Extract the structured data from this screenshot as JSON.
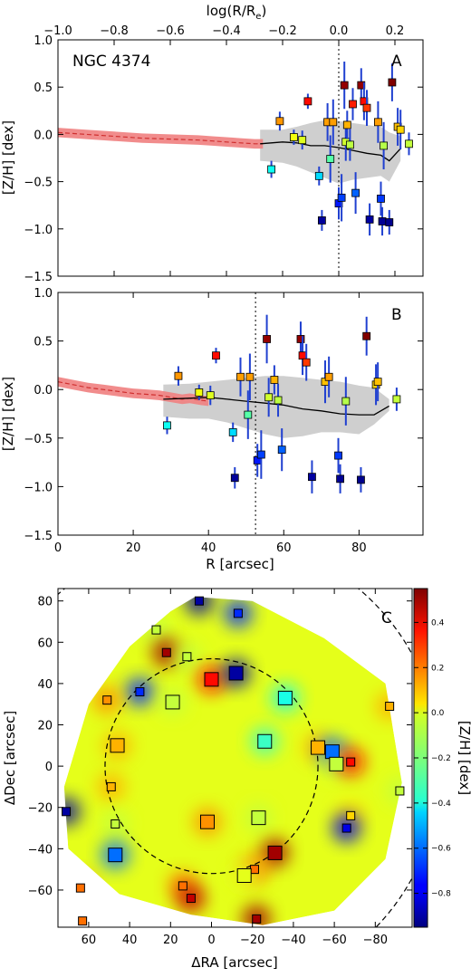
{
  "figure": {
    "galaxy": "NGC 4374",
    "panel_labels": [
      "A",
      "B",
      "C"
    ],
    "top_axis_label": "log(R/R",
    "top_axis_sub": "e",
    "top_axis_tail": ")"
  },
  "chart_data": [
    {
      "panel": "A",
      "type": "scatter",
      "xlabel": "",
      "ylabel": "[Z/H] [dex]",
      "x_scale": "log",
      "xlim": [
        -1.0,
        0.3
      ],
      "ylim": [
        -1.5,
        1.0
      ],
      "x_ticks": [
        -1.0,
        -0.8,
        -0.6,
        -0.4,
        -0.2,
        0.0,
        0.2
      ],
      "x_tick_labels": [
        "−1.0",
        "−0.8",
        "−0.6",
        "−0.4",
        "−0.2",
        "0.0",
        "0.2"
      ],
      "y_ticks": [
        -1.5,
        -1.0,
        -0.5,
        0.0,
        0.5,
        1.0
      ],
      "y_tick_labels": [
        "−1.5",
        "−1.0",
        "−0.5",
        "0.0",
        "0.5",
        "1.0"
      ],
      "reference_line_x": 0.0,
      "stellar_profile": {
        "x": [
          -1.0,
          -0.9,
          -0.8,
          -0.7,
          -0.6,
          -0.5,
          -0.45,
          -0.4,
          -0.35,
          -0.3,
          -0.27
        ],
        "y": [
          0.02,
          0.0,
          -0.02,
          -0.04,
          -0.05,
          -0.06,
          -0.07,
          -0.08,
          -0.09,
          -0.1,
          -0.1
        ],
        "err": 0.05,
        "color": "#f08080"
      },
      "smoothed_profile": {
        "x": [
          -0.28,
          -0.2,
          -0.15,
          -0.1,
          -0.05,
          0.0,
          0.05,
          0.1,
          0.15,
          0.18,
          0.22
        ],
        "y": [
          -0.1,
          -0.08,
          -0.09,
          -0.12,
          -0.12,
          -0.14,
          -0.17,
          -0.2,
          -0.22,
          -0.28,
          -0.15
        ],
        "band_low": [
          -0.28,
          -0.3,
          -0.34,
          -0.4,
          -0.46,
          -0.52,
          -0.48,
          -0.46,
          -0.44,
          -0.5,
          -0.28
        ],
        "band_high": [
          0.05,
          0.05,
          0.08,
          0.12,
          0.15,
          0.14,
          0.12,
          0.1,
          0.08,
          0.02,
          -0.02
        ]
      },
      "points": [
        {
          "x": -0.24,
          "y": -0.37,
          "err": 0.09
        },
        {
          "x": -0.21,
          "y": 0.14,
          "err": 0.1
        },
        {
          "x": -0.16,
          "y": -0.03,
          "err": 0.08
        },
        {
          "x": -0.13,
          "y": -0.06,
          "err": 0.1
        },
        {
          "x": -0.11,
          "y": 0.35,
          "err": 0.08
        },
        {
          "x": -0.07,
          "y": -0.44,
          "err": 0.1
        },
        {
          "x": -0.06,
          "y": -0.91,
          "err": 0.11
        },
        {
          "x": -0.04,
          "y": 0.13,
          "err": 0.2
        },
        {
          "x": -0.03,
          "y": -0.26,
          "err": 0.25
        },
        {
          "x": -0.02,
          "y": 0.13,
          "err": 0.24
        },
        {
          "x": 0.0,
          "y": -0.73,
          "err": 0.17
        },
        {
          "x": 0.01,
          "y": -0.67,
          "err": 0.25
        },
        {
          "x": 0.02,
          "y": 0.52,
          "err": 0.25
        },
        {
          "x": 0.025,
          "y": -0.08,
          "err": 0.2
        },
        {
          "x": 0.03,
          "y": 0.1,
          "err": 0.15
        },
        {
          "x": 0.04,
          "y": -0.11,
          "err": 0.17
        },
        {
          "x": 0.05,
          "y": 0.32,
          "err": 0.17
        },
        {
          "x": 0.06,
          "y": -0.62,
          "err": 0.22
        },
        {
          "x": 0.08,
          "y": 0.52,
          "err": 0.18
        },
        {
          "x": 0.09,
          "y": 0.35,
          "err": 0.2
        },
        {
          "x": 0.1,
          "y": 0.28,
          "err": 0.19
        },
        {
          "x": 0.11,
          "y": -0.9,
          "err": 0.17
        },
        {
          "x": 0.14,
          "y": 0.13,
          "err": 0.22
        },
        {
          "x": 0.15,
          "y": -0.68,
          "err": 0.18
        },
        {
          "x": 0.155,
          "y": -0.92,
          "err": 0.15
        },
        {
          "x": 0.16,
          "y": -0.12,
          "err": 0.25
        },
        {
          "x": 0.18,
          "y": -0.93,
          "err": 0.13
        },
        {
          "x": 0.19,
          "y": 0.55,
          "err": 0.2
        },
        {
          "x": 0.21,
          "y": 0.08,
          "err": 0.2
        },
        {
          "x": 0.22,
          "y": 0.05,
          "err": 0.21
        },
        {
          "x": 0.25,
          "y": -0.1,
          "err": 0.12
        }
      ]
    },
    {
      "panel": "B",
      "type": "scatter",
      "xlabel": "R [arcsec]",
      "ylabel": "[Z/H] [dex]",
      "xlim": [
        0,
        97
      ],
      "ylim": [
        -1.5,
        1.0
      ],
      "x_ticks": [
        0,
        20,
        40,
        60,
        80
      ],
      "x_tick_labels": [
        "0",
        "20",
        "40",
        "60",
        "80"
      ],
      "y_ticks": [
        -1.5,
        -1.0,
        -0.5,
        0.0,
        0.5,
        1.0
      ],
      "y_tick_labels": [
        "−1.5",
        "−1.0",
        "−0.5",
        "0.0",
        "0.5",
        "1.0"
      ],
      "reference_line_x": 52.5,
      "stellar_profile": {
        "x": [
          0,
          4,
          8,
          12,
          16,
          20,
          24,
          27,
          30,
          33,
          35,
          38,
          40
        ],
        "y": [
          0.08,
          0.05,
          0.02,
          0.0,
          -0.02,
          -0.04,
          -0.05,
          -0.06,
          -0.08,
          -0.1,
          -0.09,
          -0.11,
          -0.12
        ],
        "err": 0.05,
        "color": "#f08080"
      },
      "smoothed_profile": {
        "x": [
          28,
          35,
          40,
          45,
          50,
          55,
          60,
          65,
          70,
          75,
          80,
          84,
          88
        ],
        "y": [
          -0.1,
          -0.09,
          -0.08,
          -0.1,
          -0.12,
          -0.14,
          -0.16,
          -0.2,
          -0.22,
          -0.25,
          -0.26,
          -0.26,
          -0.17
        ],
        "band_low": [
          -0.28,
          -0.3,
          -0.3,
          -0.34,
          -0.4,
          -0.46,
          -0.5,
          -0.48,
          -0.44,
          -0.44,
          -0.46,
          -0.36,
          -0.22
        ],
        "band_high": [
          0.05,
          0.06,
          0.08,
          0.1,
          0.12,
          0.14,
          0.14,
          0.12,
          0.1,
          0.08,
          0.04,
          0.02,
          -0.1
        ]
      },
      "points": [
        {
          "x": 29.0,
          "y": -0.37,
          "err": 0.09
        },
        {
          "x": 32.0,
          "y": 0.14,
          "err": 0.1
        },
        {
          "x": 37.5,
          "y": -0.03,
          "err": 0.08
        },
        {
          "x": 40.5,
          "y": -0.06,
          "err": 0.1
        },
        {
          "x": 42.0,
          "y": 0.35,
          "err": 0.08
        },
        {
          "x": 46.5,
          "y": -0.44,
          "err": 0.1
        },
        {
          "x": 47.0,
          "y": -0.91,
          "err": 0.11
        },
        {
          "x": 48.5,
          "y": 0.13,
          "err": 0.2
        },
        {
          "x": 50.5,
          "y": -0.26,
          "err": 0.25
        },
        {
          "x": 51.0,
          "y": 0.13,
          "err": 0.24
        },
        {
          "x": 53.0,
          "y": -0.73,
          "err": 0.17
        },
        {
          "x": 54.0,
          "y": -0.67,
          "err": 0.25
        },
        {
          "x": 55.5,
          "y": 0.52,
          "err": 0.25
        },
        {
          "x": 56.0,
          "y": -0.08,
          "err": 0.2
        },
        {
          "x": 57.5,
          "y": 0.1,
          "err": 0.15
        },
        {
          "x": 58.5,
          "y": -0.11,
          "err": 0.17
        },
        {
          "x": 59.5,
          "y": -0.62,
          "err": 0.22
        },
        {
          "x": 64.5,
          "y": 0.52,
          "err": 0.18
        },
        {
          "x": 65.0,
          "y": 0.35,
          "err": 0.2
        },
        {
          "x": 66.0,
          "y": 0.28,
          "err": 0.19
        },
        {
          "x": 67.5,
          "y": -0.9,
          "err": 0.17
        },
        {
          "x": 71.0,
          "y": 0.08,
          "err": 0.22
        },
        {
          "x": 72.0,
          "y": 0.13,
          "err": 0.21
        },
        {
          "x": 74.5,
          "y": -0.68,
          "err": 0.18
        },
        {
          "x": 75.0,
          "y": -0.92,
          "err": 0.15
        },
        {
          "x": 76.5,
          "y": -0.12,
          "err": 0.25
        },
        {
          "x": 80.5,
          "y": -0.93,
          "err": 0.13
        },
        {
          "x": 82.0,
          "y": 0.55,
          "err": 0.2
        },
        {
          "x": 84.5,
          "y": 0.05,
          "err": 0.21
        },
        {
          "x": 85.0,
          "y": 0.08,
          "err": 0.2
        },
        {
          "x": 90.0,
          "y": -0.1,
          "err": 0.12
        }
      ]
    },
    {
      "panel": "C",
      "type": "heatmap",
      "xlabel": "ΔRA [arcsec]",
      "ylabel": "ΔDec [arcsec]",
      "colorbar_label": "[Z/H] [dex]",
      "xlim": [
        75,
        -98
      ],
      "ylim": [
        -78,
        86
      ],
      "x_ticks": [
        60,
        40,
        20,
        0,
        -20,
        -40,
        -60,
        -80
      ],
      "x_tick_labels": [
        "60",
        "40",
        "20",
        "0",
        "−20",
        "−40",
        "−60",
        "−80"
      ],
      "y_ticks": [
        -60,
        -40,
        -20,
        0,
        20,
        40,
        60,
        80
      ],
      "y_tick_labels": [
        "−60",
        "−40",
        "−20",
        "0",
        "20",
        "40",
        "60",
        "80"
      ],
      "colorbar_ticks": [
        -0.8,
        -0.6,
        -0.4,
        -0.2,
        0.0,
        0.2,
        0.4
      ],
      "colorbar_tick_labels": [
        "−0.8",
        "−0.6",
        "−0.4",
        "−0.2",
        "0.0",
        "0.2",
        "0.4"
      ],
      "color_range": [
        -0.95,
        0.55
      ],
      "colormap": "jet",
      "inner_circle_radius": 52,
      "outer_circle_radius": 112,
      "background_level": -0.05,
      "points": [
        {
          "x": 6,
          "y": 80,
          "z": -0.9,
          "big": false
        },
        {
          "x": -13,
          "y": 74,
          "z": -0.7,
          "big": false
        },
        {
          "x": 27,
          "y": 66,
          "z": -0.1,
          "big": false
        },
        {
          "x": 22,
          "y": 55,
          "z": 0.5,
          "big": false
        },
        {
          "x": 12,
          "y": 53,
          "z": -0.1,
          "big": false
        },
        {
          "x": 0,
          "y": 42,
          "z": 0.35,
          "big": true
        },
        {
          "x": -12,
          "y": 45,
          "z": -0.9,
          "big": true
        },
        {
          "x": 35,
          "y": 36,
          "z": -0.7,
          "big": false
        },
        {
          "x": 19,
          "y": 31,
          "z": -0.1,
          "big": true
        },
        {
          "x": -36,
          "y": 33,
          "z": -0.35,
          "big": true
        },
        {
          "x": 51,
          "y": 32,
          "z": 0.15,
          "big": false
        },
        {
          "x": -87,
          "y": 29,
          "z": 0.1,
          "big": false
        },
        {
          "x": -26,
          "y": 12,
          "z": -0.3,
          "big": true
        },
        {
          "x": 46,
          "y": 10,
          "z": 0.1,
          "big": true
        },
        {
          "x": -52,
          "y": 9,
          "z": 0.1,
          "big": true
        },
        {
          "x": -59,
          "y": 7,
          "z": -0.6,
          "big": true
        },
        {
          "x": -61,
          "y": 1,
          "z": -0.1,
          "big": true
        },
        {
          "x": -68,
          "y": 2,
          "z": 0.35,
          "big": false
        },
        {
          "x": 49,
          "y": -10,
          "z": 0.1,
          "big": false
        },
        {
          "x": -92,
          "y": -12,
          "z": -0.1,
          "big": false
        },
        {
          "x": 71,
          "y": -22,
          "z": -0.9,
          "big": false
        },
        {
          "x": -68,
          "y": -24,
          "z": 0.05,
          "big": false
        },
        {
          "x": -23,
          "y": -25,
          "z": -0.1,
          "big": true
        },
        {
          "x": 47,
          "y": -28,
          "z": -0.1,
          "big": false
        },
        {
          "x": 2,
          "y": -27,
          "z": 0.15,
          "big": true
        },
        {
          "x": -66,
          "y": -30,
          "z": -0.8,
          "big": false
        },
        {
          "x": 47,
          "y": -43,
          "z": -0.6,
          "big": true
        },
        {
          "x": -31,
          "y": -42,
          "z": 0.5,
          "big": true
        },
        {
          "x": 64,
          "y": -59,
          "z": 0.2,
          "big": false
        },
        {
          "x": -21,
          "y": -50,
          "z": 0.2,
          "big": false
        },
        {
          "x": -16,
          "y": -53,
          "z": -0.05,
          "big": true
        },
        {
          "x": 14,
          "y": -58,
          "z": 0.2,
          "big": false
        },
        {
          "x": 10,
          "y": -64,
          "z": 0.45,
          "big": false
        },
        {
          "x": 63,
          "y": -75,
          "z": 0.2,
          "big": false
        },
        {
          "x": -22,
          "y": -74,
          "z": 0.5,
          "big": false
        }
      ]
    }
  ]
}
